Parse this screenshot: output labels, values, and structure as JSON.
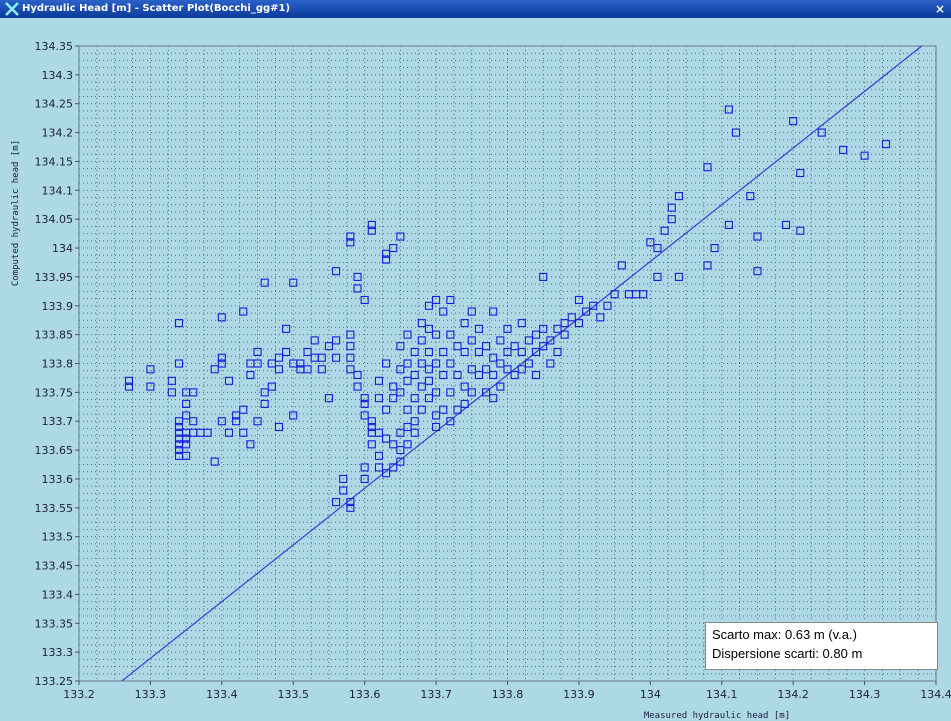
{
  "window": {
    "title": "Hydraulic Head [m] - Scatter Plot(Bocchi_gg#1)",
    "app_icon": "x-logo-icon",
    "close_label": "×"
  },
  "stats": {
    "line1": "Scarto max: 0.63 m (v.a.)",
    "line2": "Dispersione scarti: 0.80 m"
  },
  "colors": {
    "background": "#add8e6",
    "marker": "#1a1adc",
    "line": "#3a3ad8",
    "grid": "#5a6a7a"
  },
  "chart_data": {
    "type": "scatter",
    "title": "",
    "xlabel": "Measured hydraulic head [m]",
    "ylabel": "Computed hydraulic head [m]",
    "xlim": [
      133.2,
      134.4
    ],
    "ylim": [
      133.25,
      134.35
    ],
    "xticks": [
      "133.2",
      "133.3",
      "133.4",
      "133.5",
      "133.6",
      "133.7",
      "133.8",
      "133.9",
      "134",
      "134.1",
      "134.2",
      "134.3",
      "134.4"
    ],
    "yticks": [
      "134.35",
      "134.3",
      "134.25",
      "134.2",
      "134.15",
      "134.1",
      "134.05",
      "134",
      "133.95",
      "133.9",
      "133.85",
      "133.8",
      "133.75",
      "133.7",
      "133.65",
      "133.6",
      "133.55",
      "133.5",
      "133.45",
      "133.4",
      "133.35",
      "133.3",
      "133.25"
    ],
    "grid": true,
    "series": [
      {
        "type": "scatter",
        "marker": "square-outline",
        "points": [
          [
            133.27,
            133.77
          ],
          [
            133.27,
            133.76
          ],
          [
            133.3,
            133.79
          ],
          [
            133.3,
            133.76
          ],
          [
            133.33,
            133.75
          ],
          [
            133.33,
            133.77
          ],
          [
            133.34,
            133.87
          ],
          [
            133.34,
            133.8
          ],
          [
            133.34,
            133.7
          ],
          [
            133.34,
            133.69
          ],
          [
            133.34,
            133.68
          ],
          [
            133.34,
            133.67
          ],
          [
            133.34,
            133.66
          ],
          [
            133.34,
            133.65
          ],
          [
            133.34,
            133.64
          ],
          [
            133.35,
            133.73
          ],
          [
            133.35,
            133.75
          ],
          [
            133.35,
            133.71
          ],
          [
            133.35,
            133.68
          ],
          [
            133.35,
            133.67
          ],
          [
            133.35,
            133.66
          ],
          [
            133.35,
            133.64
          ],
          [
            133.36,
            133.7
          ],
          [
            133.36,
            133.68
          ],
          [
            133.36,
            133.75
          ],
          [
            133.37,
            133.68
          ],
          [
            133.38,
            133.68
          ],
          [
            133.39,
            133.79
          ],
          [
            133.39,
            133.63
          ],
          [
            133.4,
            133.7
          ],
          [
            133.4,
            133.8
          ],
          [
            133.4,
            133.81
          ],
          [
            133.4,
            133.88
          ],
          [
            133.41,
            133.77
          ],
          [
            133.41,
            133.68
          ],
          [
            133.42,
            133.71
          ],
          [
            133.42,
            133.7
          ],
          [
            133.43,
            133.89
          ],
          [
            133.43,
            133.72
          ],
          [
            133.43,
            133.68
          ],
          [
            133.44,
            133.8
          ],
          [
            133.44,
            133.78
          ],
          [
            133.44,
            133.66
          ],
          [
            133.45,
            133.82
          ],
          [
            133.45,
            133.8
          ],
          [
            133.45,
            133.7
          ],
          [
            133.46,
            133.75
          ],
          [
            133.46,
            133.73
          ],
          [
            133.46,
            133.94
          ],
          [
            133.47,
            133.8
          ],
          [
            133.47,
            133.76
          ],
          [
            133.48,
            133.79
          ],
          [
            133.48,
            133.81
          ],
          [
            133.48,
            133.69
          ],
          [
            133.49,
            133.86
          ],
          [
            133.49,
            133.82
          ],
          [
            133.5,
            133.8
          ],
          [
            133.5,
            133.71
          ],
          [
            133.5,
            133.94
          ],
          [
            133.51,
            133.8
          ],
          [
            133.51,
            133.79
          ],
          [
            133.52,
            133.82
          ],
          [
            133.52,
            133.79
          ],
          [
            133.53,
            133.81
          ],
          [
            133.53,
            133.84
          ],
          [
            133.54,
            133.81
          ],
          [
            133.54,
            133.79
          ],
          [
            133.55,
            133.74
          ],
          [
            133.55,
            133.83
          ],
          [
            133.56,
            133.84
          ],
          [
            133.56,
            133.81
          ],
          [
            133.56,
            133.96
          ],
          [
            133.56,
            133.56
          ],
          [
            133.57,
            133.58
          ],
          [
            133.57,
            133.6
          ],
          [
            133.58,
            133.85
          ],
          [
            133.58,
            133.83
          ],
          [
            133.58,
            133.81
          ],
          [
            133.58,
            133.79
          ],
          [
            133.58,
            134.02
          ],
          [
            133.58,
            134.01
          ],
          [
            133.58,
            133.55
          ],
          [
            133.58,
            133.56
          ],
          [
            133.59,
            133.95
          ],
          [
            133.59,
            133.93
          ],
          [
            133.59,
            133.78
          ],
          [
            133.59,
            133.76
          ],
          [
            133.6,
            133.91
          ],
          [
            133.6,
            133.74
          ],
          [
            133.6,
            133.73
          ],
          [
            133.6,
            133.71
          ],
          [
            133.6,
            133.62
          ],
          [
            133.6,
            133.6
          ],
          [
            133.61,
            133.7
          ],
          [
            133.61,
            133.69
          ],
          [
            133.61,
            133.68
          ],
          [
            133.61,
            133.66
          ],
          [
            133.61,
            134.03
          ],
          [
            133.61,
            134.04
          ],
          [
            133.62,
            133.77
          ],
          [
            133.62,
            133.74
          ],
          [
            133.62,
            133.68
          ],
          [
            133.62,
            133.64
          ],
          [
            133.62,
            133.62
          ],
          [
            133.63,
            133.99
          ],
          [
            133.63,
            133.98
          ],
          [
            133.63,
            133.8
          ],
          [
            133.63,
            133.72
          ],
          [
            133.63,
            133.67
          ],
          [
            133.63,
            133.61
          ],
          [
            133.64,
            133.76
          ],
          [
            133.64,
            133.74
          ],
          [
            133.64,
            133.66
          ],
          [
            133.64,
            133.62
          ],
          [
            133.64,
            134.0
          ],
          [
            133.65,
            133.83
          ],
          [
            133.65,
            133.79
          ],
          [
            133.65,
            133.75
          ],
          [
            133.65,
            133.68
          ],
          [
            133.65,
            133.65
          ],
          [
            133.65,
            133.63
          ],
          [
            133.65,
            134.02
          ],
          [
            133.66,
            133.85
          ],
          [
            133.66,
            133.8
          ],
          [
            133.66,
            133.77
          ],
          [
            133.66,
            133.72
          ],
          [
            133.66,
            133.69
          ],
          [
            133.66,
            133.66
          ],
          [
            133.67,
            133.82
          ],
          [
            133.67,
            133.78
          ],
          [
            133.67,
            133.74
          ],
          [
            133.67,
            133.7
          ],
          [
            133.67,
            133.68
          ],
          [
            133.68,
            133.87
          ],
          [
            133.68,
            133.84
          ],
          [
            133.68,
            133.8
          ],
          [
            133.68,
            133.76
          ],
          [
            133.68,
            133.72
          ],
          [
            133.69,
            133.9
          ],
          [
            133.69,
            133.86
          ],
          [
            133.69,
            133.82
          ],
          [
            133.69,
            133.79
          ],
          [
            133.69,
            133.77
          ],
          [
            133.69,
            133.74
          ],
          [
            133.7,
            133.91
          ],
          [
            133.7,
            133.85
          ],
          [
            133.7,
            133.8
          ],
          [
            133.7,
            133.75
          ],
          [
            133.7,
            133.71
          ],
          [
            133.7,
            133.69
          ],
          [
            133.71,
            133.89
          ],
          [
            133.71,
            133.82
          ],
          [
            133.71,
            133.78
          ],
          [
            133.71,
            133.72
          ],
          [
            133.72,
            133.91
          ],
          [
            133.72,
            133.85
          ],
          [
            133.72,
            133.8
          ],
          [
            133.72,
            133.75
          ],
          [
            133.72,
            133.7
          ],
          [
            133.73,
            133.83
          ],
          [
            133.73,
            133.78
          ],
          [
            133.73,
            133.72
          ],
          [
            133.74,
            133.87
          ],
          [
            133.74,
            133.82
          ],
          [
            133.74,
            133.76
          ],
          [
            133.74,
            133.73
          ],
          [
            133.75,
            133.89
          ],
          [
            133.75,
            133.84
          ],
          [
            133.75,
            133.79
          ],
          [
            133.75,
            133.75
          ],
          [
            133.76,
            133.86
          ],
          [
            133.76,
            133.82
          ],
          [
            133.76,
            133.78
          ],
          [
            133.77,
            133.83
          ],
          [
            133.77,
            133.79
          ],
          [
            133.77,
            133.75
          ],
          [
            133.78,
            133.89
          ],
          [
            133.78,
            133.81
          ],
          [
            133.78,
            133.78
          ],
          [
            133.78,
            133.74
          ],
          [
            133.79,
            133.84
          ],
          [
            133.79,
            133.8
          ],
          [
            133.79,
            133.76
          ],
          [
            133.8,
            133.86
          ],
          [
            133.8,
            133.82
          ],
          [
            133.8,
            133.79
          ],
          [
            133.81,
            133.83
          ],
          [
            133.81,
            133.78
          ],
          [
            133.82,
            133.87
          ],
          [
            133.82,
            133.82
          ],
          [
            133.82,
            133.79
          ],
          [
            133.83,
            133.84
          ],
          [
            133.83,
            133.8
          ],
          [
            133.84,
            133.85
          ],
          [
            133.84,
            133.82
          ],
          [
            133.84,
            133.78
          ],
          [
            133.85,
            133.95
          ],
          [
            133.85,
            133.86
          ],
          [
            133.85,
            133.83
          ],
          [
            133.86,
            133.84
          ],
          [
            133.86,
            133.8
          ],
          [
            133.87,
            133.86
          ],
          [
            133.87,
            133.82
          ],
          [
            133.88,
            133.87
          ],
          [
            133.88,
            133.85
          ],
          [
            133.89,
            133.88
          ],
          [
            133.9,
            133.91
          ],
          [
            133.9,
            133.87
          ],
          [
            133.91,
            133.89
          ],
          [
            133.92,
            133.9
          ],
          [
            133.93,
            133.88
          ],
          [
            133.94,
            133.9
          ],
          [
            133.95,
            133.92
          ],
          [
            133.96,
            133.97
          ],
          [
            133.97,
            133.92
          ],
          [
            133.98,
            133.92
          ],
          [
            133.99,
            133.92
          ],
          [
            134.0,
            134.01
          ],
          [
            134.01,
            134.0
          ],
          [
            134.01,
            133.95
          ],
          [
            134.02,
            134.03
          ],
          [
            134.03,
            134.05
          ],
          [
            134.03,
            134.07
          ],
          [
            134.04,
            134.09
          ],
          [
            134.04,
            133.95
          ],
          [
            134.08,
            134.14
          ],
          [
            134.08,
            133.97
          ],
          [
            134.09,
            134.0
          ],
          [
            134.11,
            134.04
          ],
          [
            134.11,
            134.24
          ],
          [
            134.12,
            134.2
          ],
          [
            134.14,
            134.09
          ],
          [
            134.15,
            134.02
          ],
          [
            134.15,
            133.96
          ],
          [
            134.19,
            134.04
          ],
          [
            134.2,
            134.22
          ],
          [
            134.21,
            134.13
          ],
          [
            134.21,
            134.03
          ],
          [
            134.24,
            134.2
          ],
          [
            134.27,
            134.17
          ],
          [
            134.3,
            134.16
          ],
          [
            134.33,
            134.18
          ]
        ]
      },
      {
        "type": "line",
        "points": [
          [
            133.26,
            133.25
          ],
          [
            134.38,
            134.35
          ]
        ]
      }
    ]
  }
}
